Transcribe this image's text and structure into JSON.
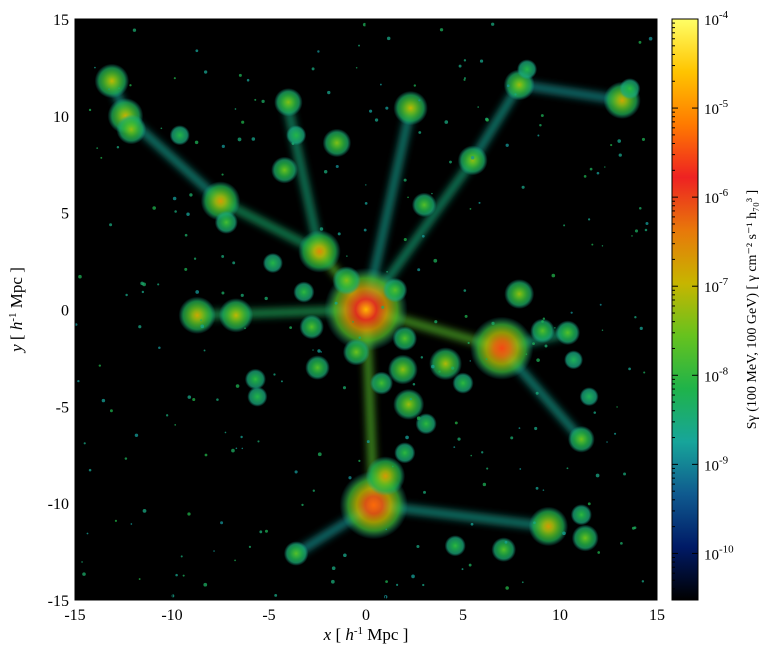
{
  "chart_data": {
    "type": "heatmap",
    "title": "",
    "xlabel": {
      "var": "x",
      "text": "[ h⁻¹ Mpc ]",
      "pre": " [ ",
      "h": "h",
      "sup": "-1",
      "post": " Mpc ]"
    },
    "ylabel": {
      "var": "y",
      "text": "[ h⁻¹ Mpc ]",
      "pre": " [ ",
      "h": "h",
      "sup": "-1",
      "post": " Mpc ]"
    },
    "xlim": [
      -15,
      15
    ],
    "ylim": [
      -15,
      15
    ],
    "xticks": [
      -15,
      -10,
      -5,
      0,
      5,
      10,
      15
    ],
    "yticks": [
      -15,
      -10,
      -5,
      0,
      5,
      10,
      15
    ],
    "xtick_labels": [
      "-15",
      "-10",
      "-5",
      "0",
      "5",
      "10",
      "15"
    ],
    "ytick_labels": [
      "-15",
      "-10",
      "-5",
      "0",
      "5",
      "10",
      "15"
    ],
    "colorbar": {
      "scale": "log",
      "range": [
        3e-11,
        0.0001
      ],
      "ticks": [
        {
          "value": 0.0001,
          "base": "10",
          "exp": "-4"
        },
        {
          "value": 1e-05,
          "base": "10",
          "exp": "-5"
        },
        {
          "value": 1e-06,
          "base": "10",
          "exp": "-6"
        },
        {
          "value": 1e-07,
          "base": "10",
          "exp": "-7"
        },
        {
          "value": 1e-08,
          "base": "10",
          "exp": "-8"
        },
        {
          "value": 1e-09,
          "base": "10",
          "exp": "-9"
        },
        {
          "value": 1e-10,
          "base": "10",
          "exp": "-10"
        }
      ],
      "label": "Sγ (100 MeV, 100 GeV) [ γ cm⁻² s⁻¹ h₇₀³ ]",
      "colors": [
        "#000000",
        "#001a66",
        "#0f5a8f",
        "#17a59a",
        "#1fb34a",
        "#66c21e",
        "#c7b500",
        "#e8780a",
        "#ee2222",
        "#ff7a00",
        "#ffc400",
        "#ffff66"
      ]
    },
    "halos": [
      {
        "x": 0.0,
        "y": 0.0,
        "value": 2e-05
      },
      {
        "x": 7.0,
        "y": -2.0,
        "value": 3e-06
      },
      {
        "x": 0.4,
        "y": -10.1,
        "value": 5e-06
      },
      {
        "x": -2.4,
        "y": 3.0,
        "value": 3e-07
      },
      {
        "x": -7.5,
        "y": 5.6,
        "value": 2e-07
      },
      {
        "x": -8.7,
        "y": -0.3,
        "value": 1.5e-07
      },
      {
        "x": -6.7,
        "y": -0.3,
        "value": 1e-07
      },
      {
        "x": 4.1,
        "y": -2.8,
        "value": 8e-08
      },
      {
        "x": 1.9,
        "y": -3.1,
        "value": 5e-08
      },
      {
        "x": 2.2,
        "y": -4.9,
        "value": 6e-08
      },
      {
        "x": 1.0,
        "y": -8.6,
        "value": 2e-07
      },
      {
        "x": 9.4,
        "y": -11.2,
        "value": 2e-07
      },
      {
        "x": 13.2,
        "y": 10.8,
        "value": 1.5e-07
      },
      {
        "x": 2.3,
        "y": 10.4,
        "value": 1e-07
      },
      {
        "x": -13.1,
        "y": 11.8,
        "value": 1e-07
      },
      {
        "x": -12.4,
        "y": 10.0,
        "value": 1.2e-07
      },
      {
        "x": -12.1,
        "y": 9.3,
        "value": 5e-08
      },
      {
        "x": -4.0,
        "y": 10.7,
        "value": 4e-08
      },
      {
        "x": -1.5,
        "y": 8.6,
        "value": 4e-08
      },
      {
        "x": 5.5,
        "y": 7.7,
        "value": 5e-08
      },
      {
        "x": 7.9,
        "y": 11.6,
        "value": 6e-08
      },
      {
        "x": 7.9,
        "y": 0.8,
        "value": 5e-08
      },
      {
        "x": 11.1,
        "y": -6.7,
        "value": 3e-08
      },
      {
        "x": 11.3,
        "y": -11.8,
        "value": 3e-08
      },
      {
        "x": 7.1,
        "y": -12.4,
        "value": 2e-08
      },
      {
        "x": -3.6,
        "y": -12.6,
        "value": 2e-08
      },
      {
        "x": 10.4,
        "y": -1.2,
        "value": 2e-08
      },
      {
        "x": 9.1,
        "y": -1.1,
        "value": 2e-08
      },
      {
        "x": 3.0,
        "y": 5.4,
        "value": 2e-08
      },
      {
        "x": -4.2,
        "y": 7.2,
        "value": 3e-08
      },
      {
        "x": -2.5,
        "y": -3.0,
        "value": 2e-08
      },
      {
        "x": -3.2,
        "y": 0.9,
        "value": 1e-08
      },
      {
        "x": -2.8,
        "y": -0.9,
        "value": 2e-08
      },
      {
        "x": -1.0,
        "y": 1.5,
        "value": 4e-08
      },
      {
        "x": 1.5,
        "y": 1.0,
        "value": 2e-08
      },
      {
        "x": 2.0,
        "y": -1.5,
        "value": 2e-08
      },
      {
        "x": 3.1,
        "y": -5.9,
        "value": 1e-08
      },
      {
        "x": 2.0,
        "y": -7.4,
        "value": 1e-08
      },
      {
        "x": 11.1,
        "y": -10.6,
        "value": 1e-08
      },
      {
        "x": 4.6,
        "y": -12.2,
        "value": 1e-08
      },
      {
        "x": -5.7,
        "y": -3.6,
        "value": 1e-08
      },
      {
        "x": -5.6,
        "y": -4.5,
        "value": 8e-09
      },
      {
        "x": -4.8,
        "y": 2.4,
        "value": 8e-09
      },
      {
        "x": -9.6,
        "y": 9.0,
        "value": 8e-09
      },
      {
        "x": -7.2,
        "y": 4.5,
        "value": 1.5e-08
      },
      {
        "x": 13.6,
        "y": 11.4,
        "value": 1e-08
      },
      {
        "x": 0.8,
        "y": -3.8,
        "value": 1.5e-08
      },
      {
        "x": -0.5,
        "y": -2.2,
        "value": 3e-08
      },
      {
        "x": 5.0,
        "y": -3.8,
        "value": 1e-08
      },
      {
        "x": -3.6,
        "y": 9.0,
        "value": 8e-09
      },
      {
        "x": 8.3,
        "y": 12.4,
        "value": 8e-09
      },
      {
        "x": 10.7,
        "y": -2.6,
        "value": 6e-09
      },
      {
        "x": 11.5,
        "y": -4.5,
        "value": 6e-09
      }
    ],
    "filaments": [
      {
        "from": [
          0,
          0
        ],
        "to": [
          7.0,
          -2.0
        ],
        "value": 2e-08
      },
      {
        "from": [
          0,
          0
        ],
        "to": [
          0.4,
          -10.1
        ],
        "value": 2e-08
      },
      {
        "from": [
          0,
          0
        ],
        "to": [
          -2.4,
          3.0
        ],
        "value": 2e-08
      },
      {
        "from": [
          0,
          0
        ],
        "to": [
          -8.7,
          -0.3
        ],
        "value": 5e-09
      },
      {
        "from": [
          -2.4,
          3.0
        ],
        "to": [
          -7.5,
          5.6
        ],
        "value": 4e-09
      },
      {
        "from": [
          -2.4,
          3.0
        ],
        "to": [
          -4.1,
          10.8
        ],
        "value": 3e-09
      },
      {
        "from": [
          0,
          0
        ],
        "to": [
          2.3,
          10.4
        ],
        "value": 2e-09
      },
      {
        "from": [
          0,
          0
        ],
        "to": [
          5.5,
          7.7
        ],
        "value": 3e-09
      },
      {
        "from": [
          7.0,
          -2.0
        ],
        "to": [
          10.4,
          -1.2
        ],
        "value": 3e-09
      },
      {
        "from": [
          7.0,
          -2.0
        ],
        "to": [
          11.1,
          -6.7
        ],
        "value": 2e-09
      },
      {
        "from": [
          0.4,
          -10.1
        ],
        "to": [
          9.4,
          -11.2
        ],
        "value": 2e-09
      },
      {
        "from": [
          0.4,
          -10.1
        ],
        "to": [
          -3.6,
          -12.6
        ],
        "value": 1.5e-09
      },
      {
        "from": [
          -7.5,
          5.6
        ],
        "to": [
          -12.4,
          10.0
        ],
        "value": 2e-09
      },
      {
        "from": [
          -12.4,
          10.0
        ],
        "to": [
          -13.1,
          11.8
        ],
        "value": 2e-09
      },
      {
        "from": [
          5.5,
          7.7
        ],
        "to": [
          7.9,
          11.6
        ],
        "value": 2e-09
      },
      {
        "from": [
          7.9,
          11.6
        ],
        "to": [
          13.2,
          10.8
        ],
        "value": 1.5e-09
      }
    ]
  }
}
